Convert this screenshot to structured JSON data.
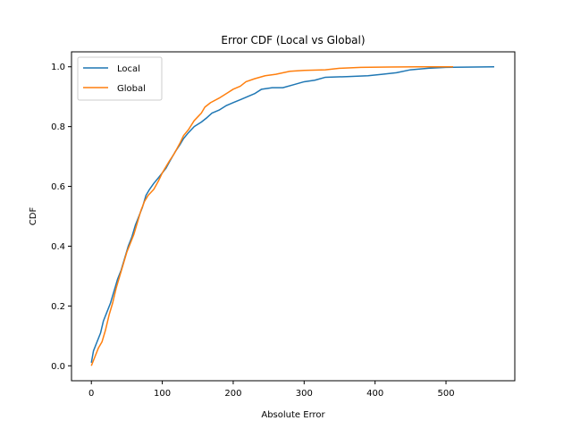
{
  "chart_data": {
    "type": "line",
    "title": "Error CDF (Local vs Global)",
    "xlabel": "Absolute Error",
    "ylabel": "CDF",
    "xlim": [
      -28,
      597
    ],
    "ylim": [
      -0.05,
      1.05
    ],
    "xticks": [
      0,
      100,
      200,
      300,
      400,
      500
    ],
    "yticks": [
      0.0,
      0.2,
      0.4,
      0.6,
      0.8,
      1.0
    ],
    "xtick_labels": [
      "0",
      "100",
      "200",
      "300",
      "400",
      "500"
    ],
    "ytick_labels": [
      "0.0",
      "0.2",
      "0.4",
      "0.6",
      "0.8",
      "1.0"
    ],
    "grid": false,
    "legend": {
      "position": "upper-left"
    },
    "series": [
      {
        "name": "Local",
        "color": "#1f77b4",
        "points": [
          [
            0,
            0.01
          ],
          [
            3,
            0.05
          ],
          [
            8,
            0.08
          ],
          [
            13,
            0.11
          ],
          [
            17,
            0.15
          ],
          [
            22,
            0.18
          ],
          [
            27,
            0.21
          ],
          [
            32,
            0.25
          ],
          [
            37,
            0.29
          ],
          [
            42,
            0.32
          ],
          [
            47,
            0.36
          ],
          [
            52,
            0.4
          ],
          [
            57,
            0.43
          ],
          [
            62,
            0.47
          ],
          [
            67,
            0.5
          ],
          [
            72,
            0.53
          ],
          [
            77,
            0.57
          ],
          [
            82,
            0.59
          ],
          [
            88,
            0.61
          ],
          [
            95,
            0.63
          ],
          [
            100,
            0.645
          ],
          [
            105,
            0.66
          ],
          [
            112,
            0.69
          ],
          [
            118,
            0.715
          ],
          [
            125,
            0.74
          ],
          [
            130,
            0.76
          ],
          [
            137,
            0.78
          ],
          [
            145,
            0.8
          ],
          [
            155,
            0.815
          ],
          [
            163,
            0.83
          ],
          [
            170,
            0.845
          ],
          [
            180,
            0.855
          ],
          [
            190,
            0.87
          ],
          [
            200,
            0.88
          ],
          [
            210,
            0.89
          ],
          [
            220,
            0.9
          ],
          [
            230,
            0.91
          ],
          [
            240,
            0.925
          ],
          [
            255,
            0.93
          ],
          [
            270,
            0.93
          ],
          [
            285,
            0.94
          ],
          [
            300,
            0.95
          ],
          [
            315,
            0.955
          ],
          [
            330,
            0.965
          ],
          [
            360,
            0.967
          ],
          [
            390,
            0.97
          ],
          [
            410,
            0.975
          ],
          [
            430,
            0.98
          ],
          [
            450,
            0.99
          ],
          [
            475,
            0.995
          ],
          [
            500,
            0.998
          ],
          [
            540,
            0.999
          ],
          [
            568,
            1.0
          ]
        ]
      },
      {
        "name": "Global",
        "color": "#ff7f0e",
        "points": [
          [
            0,
            0.0
          ],
          [
            5,
            0.03
          ],
          [
            10,
            0.06
          ],
          [
            15,
            0.08
          ],
          [
            20,
            0.12
          ],
          [
            25,
            0.17
          ],
          [
            30,
            0.21
          ],
          [
            35,
            0.26
          ],
          [
            40,
            0.3
          ],
          [
            45,
            0.34
          ],
          [
            50,
            0.38
          ],
          [
            55,
            0.41
          ],
          [
            60,
            0.44
          ],
          [
            65,
            0.48
          ],
          [
            70,
            0.52
          ],
          [
            75,
            0.55
          ],
          [
            80,
            0.57
          ],
          [
            88,
            0.59
          ],
          [
            95,
            0.62
          ],
          [
            100,
            0.645
          ],
          [
            105,
            0.665
          ],
          [
            110,
            0.685
          ],
          [
            117,
            0.71
          ],
          [
            125,
            0.745
          ],
          [
            130,
            0.77
          ],
          [
            137,
            0.79
          ],
          [
            145,
            0.82
          ],
          [
            155,
            0.845
          ],
          [
            160,
            0.865
          ],
          [
            168,
            0.88
          ],
          [
            180,
            0.895
          ],
          [
            190,
            0.91
          ],
          [
            200,
            0.925
          ],
          [
            210,
            0.935
          ],
          [
            218,
            0.95
          ],
          [
            230,
            0.96
          ],
          [
            245,
            0.97
          ],
          [
            260,
            0.975
          ],
          [
            280,
            0.985
          ],
          [
            300,
            0.988
          ],
          [
            330,
            0.99
          ],
          [
            350,
            0.995
          ],
          [
            380,
            0.998
          ],
          [
            420,
            0.999
          ],
          [
            460,
            1.0
          ],
          [
            510,
            1.0
          ]
        ]
      }
    ]
  }
}
